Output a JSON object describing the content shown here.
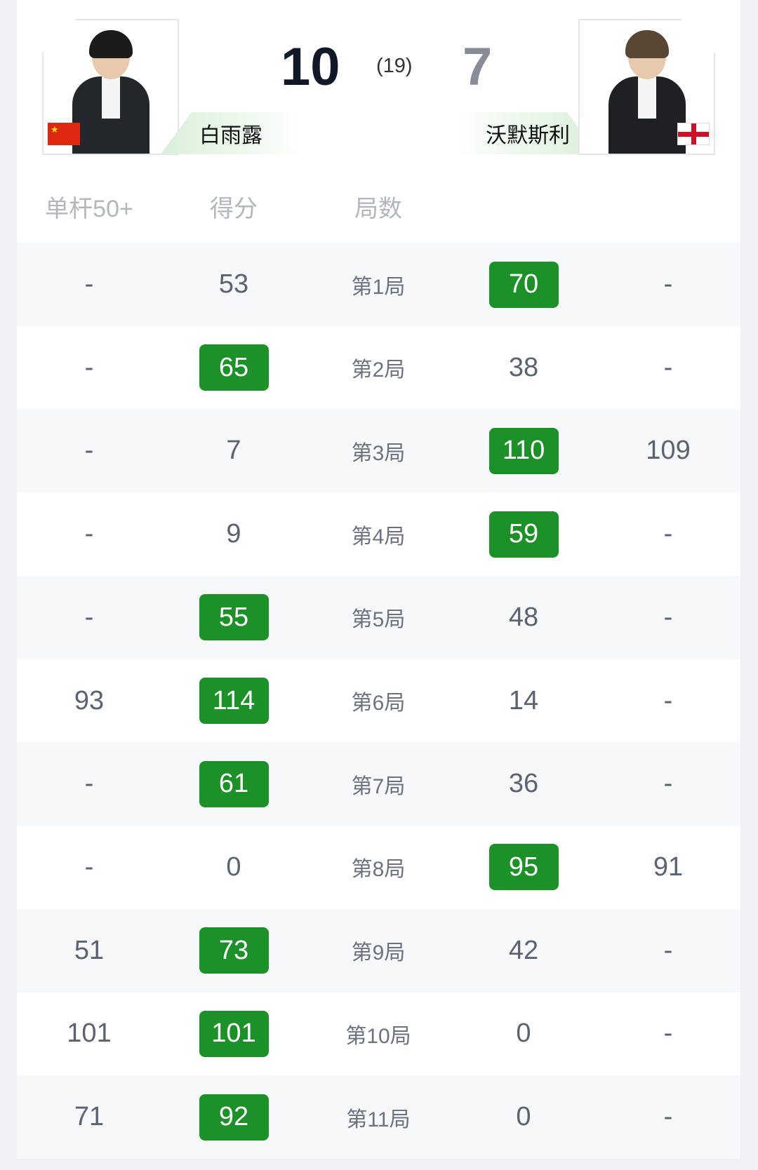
{
  "match": {
    "player1": {
      "name": "白雨露",
      "score": "10",
      "country": "China"
    },
    "player2": {
      "name": "沃默斯利",
      "score": "7",
      "country": "England"
    },
    "best_of": "(19)"
  },
  "colors": {
    "winner_badge": "#1c9128",
    "score_leader": "#111827",
    "score_trailer": "#878c97"
  },
  "table": {
    "headers": [
      "单杆50+",
      "得分",
      "局数"
    ],
    "rows": [
      {
        "p1_break": "-",
        "p1_score": "53",
        "frame": "第1局",
        "p2_score": "70",
        "p2_break": "-",
        "winner": 2
      },
      {
        "p1_break": "-",
        "p1_score": "65",
        "frame": "第2局",
        "p2_score": "38",
        "p2_break": "-",
        "winner": 1
      },
      {
        "p1_break": "-",
        "p1_score": "7",
        "frame": "第3局",
        "p2_score": "110",
        "p2_break": "109",
        "winner": 2
      },
      {
        "p1_break": "-",
        "p1_score": "9",
        "frame": "第4局",
        "p2_score": "59",
        "p2_break": "-",
        "winner": 2
      },
      {
        "p1_break": "-",
        "p1_score": "55",
        "frame": "第5局",
        "p2_score": "48",
        "p2_break": "-",
        "winner": 1
      },
      {
        "p1_break": "93",
        "p1_score": "114",
        "frame": "第6局",
        "p2_score": "14",
        "p2_break": "-",
        "winner": 1
      },
      {
        "p1_break": "-",
        "p1_score": "61",
        "frame": "第7局",
        "p2_score": "36",
        "p2_break": "-",
        "winner": 1
      },
      {
        "p1_break": "-",
        "p1_score": "0",
        "frame": "第8局",
        "p2_score": "95",
        "p2_break": "91",
        "winner": 2
      },
      {
        "p1_break": "51",
        "p1_score": "73",
        "frame": "第9局",
        "p2_score": "42",
        "p2_break": "-",
        "winner": 1
      },
      {
        "p1_break": "101",
        "p1_score": "101",
        "frame": "第10局",
        "p2_score": "0",
        "p2_break": "-",
        "winner": 1
      },
      {
        "p1_break": "71",
        "p1_score": "92",
        "frame": "第11局",
        "p2_score": "0",
        "p2_break": "-",
        "winner": 1
      }
    ]
  }
}
